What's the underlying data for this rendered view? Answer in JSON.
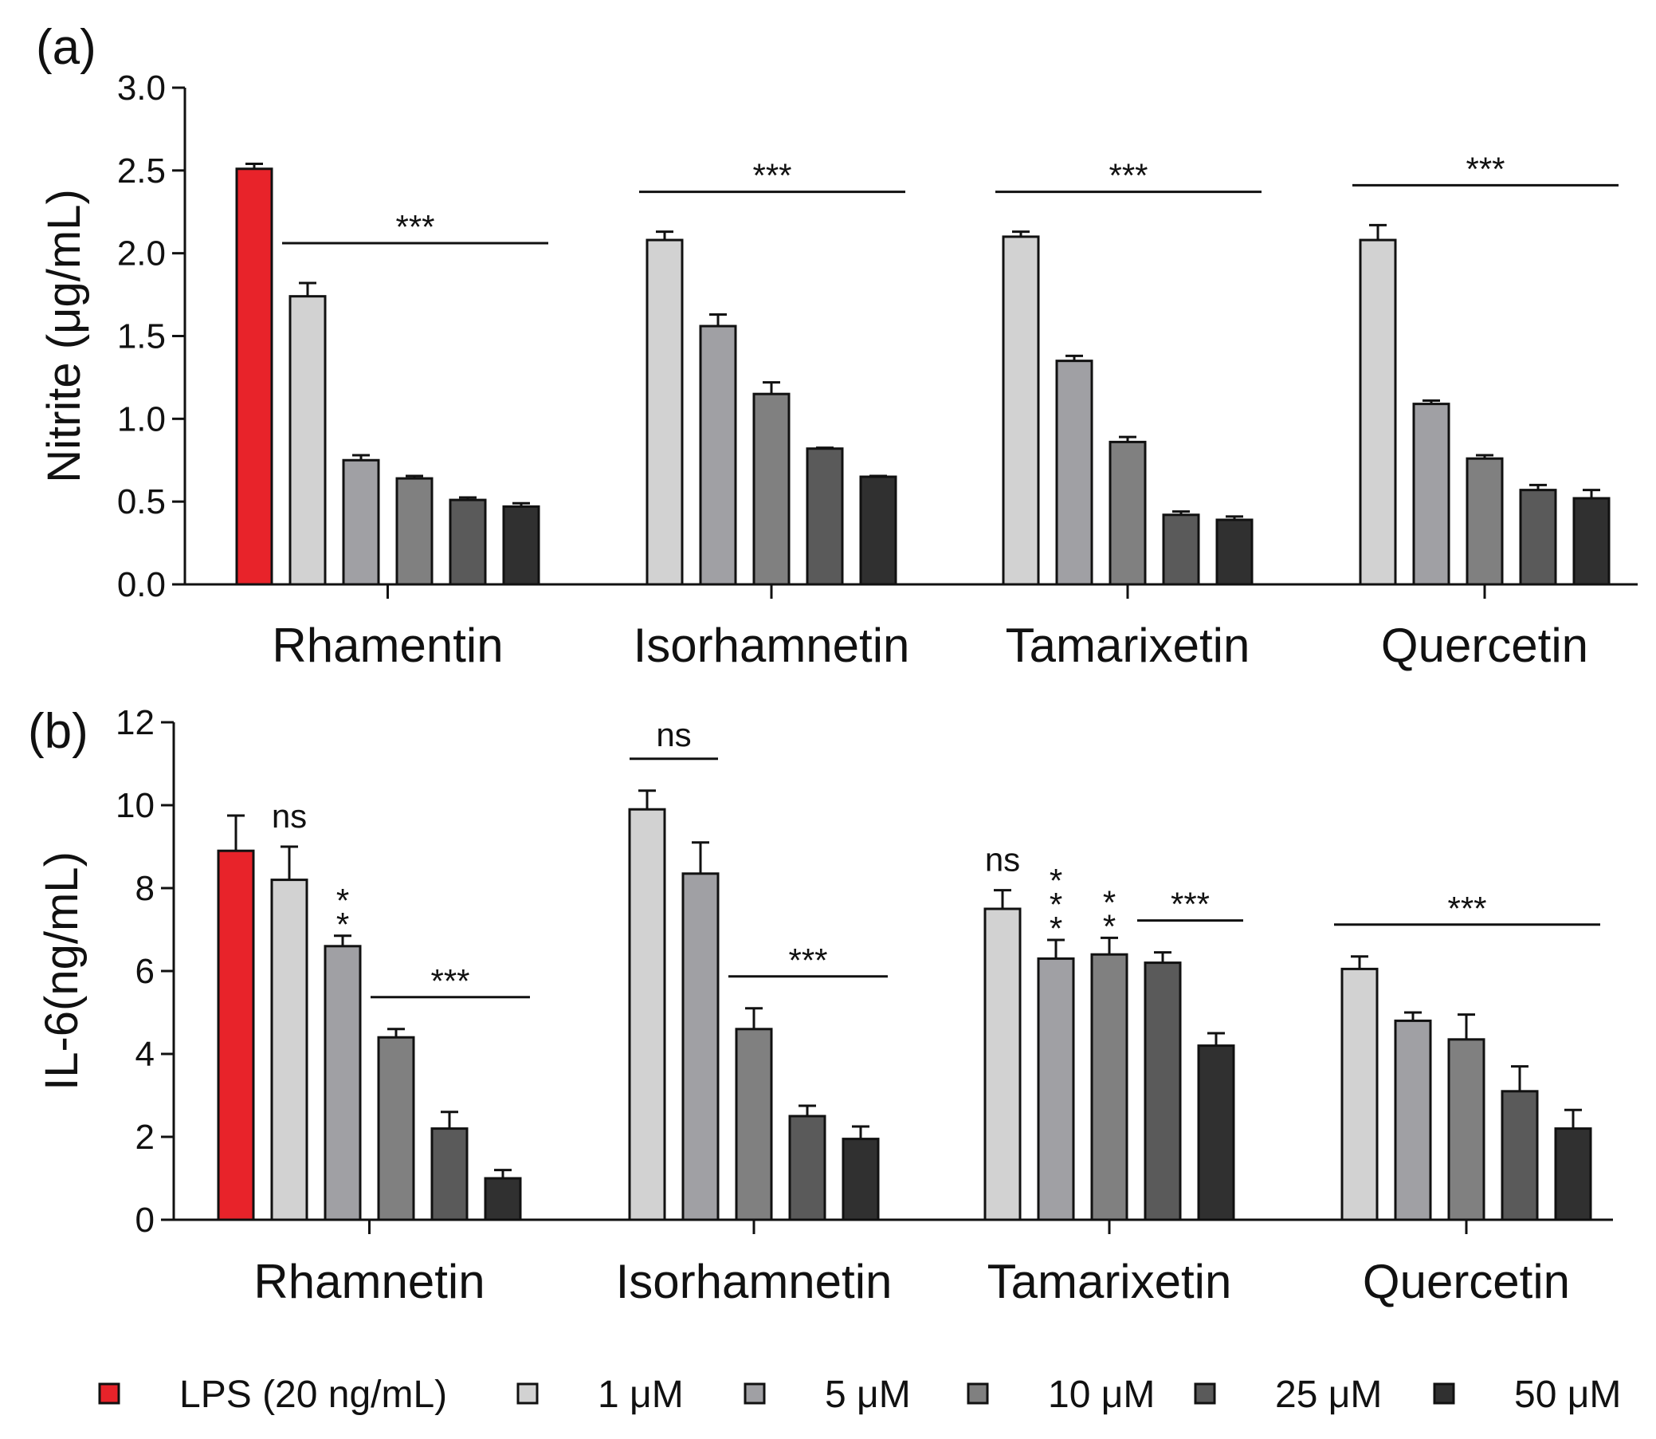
{
  "legend": [
    {
      "label": "LPS (20 ng/mL)",
      "color": "#e8232a"
    },
    {
      "label": "1 μM",
      "color": "#d2d2d2"
    },
    {
      "label": "5 μM",
      "color": "#a0a0a4"
    },
    {
      "label": "10 μM",
      "color": "#808080"
    },
    {
      "label": "25 μM",
      "color": "#5a5a5a"
    },
    {
      "label": "50 μM",
      "color": "#303030"
    }
  ],
  "chart_data": [
    {
      "type": "bar",
      "panel": "(a)",
      "ylabel": "Nitrite (μg/mL)",
      "ylim": [
        0,
        3.0
      ],
      "yticks": [
        "0.0",
        "0.5",
        "1.0",
        "1.5",
        "2.0",
        "2.5",
        "3.0"
      ],
      "categories": [
        "Rhamentin",
        "Isorhamnetin",
        "Tamarixetin",
        "Quercetin"
      ],
      "groups": [
        {
          "name": "Rhamentin",
          "bars": [
            {
              "series": "LPS (20 ng/mL)",
              "value": 2.51,
              "error": 0.03
            },
            {
              "series": "1 μM",
              "value": 1.74,
              "error": 0.08
            },
            {
              "series": "5 μM",
              "value": 0.75,
              "error": 0.03
            },
            {
              "series": "10 μM",
              "value": 0.64,
              "error": 0.015
            },
            {
              "series": "25 μM",
              "value": 0.51,
              "error": 0.015
            },
            {
              "series": "50 μM",
              "value": 0.47,
              "error": 0.02
            }
          ],
          "annotations": [
            {
              "text": "***",
              "from": 1,
              "to": 5
            }
          ]
        },
        {
          "name": "Isorhamnetin",
          "bars": [
            {
              "series": "1 μM",
              "value": 2.08,
              "error": 0.05
            },
            {
              "series": "5 μM",
              "value": 1.56,
              "error": 0.07
            },
            {
              "series": "10 μM",
              "value": 1.15,
              "error": 0.07
            },
            {
              "series": "25 μM",
              "value": 0.82,
              "error": 0.005
            },
            {
              "series": "50 μM",
              "value": 0.65,
              "error": 0.005
            }
          ],
          "annotations": [
            {
              "text": "***",
              "from": 0,
              "to": 4
            }
          ]
        },
        {
          "name": "Tamarixetin",
          "bars": [
            {
              "series": "1 μM",
              "value": 2.1,
              "error": 0.03
            },
            {
              "series": "5 μM",
              "value": 1.35,
              "error": 0.03
            },
            {
              "series": "10 μM",
              "value": 0.86,
              "error": 0.03
            },
            {
              "series": "25 μM",
              "value": 0.42,
              "error": 0.02
            },
            {
              "series": "50 μM",
              "value": 0.39,
              "error": 0.02
            }
          ],
          "annotations": [
            {
              "text": "***",
              "from": 0,
              "to": 4
            }
          ]
        },
        {
          "name": "Quercetin",
          "bars": [
            {
              "series": "1 μM",
              "value": 2.08,
              "error": 0.09
            },
            {
              "series": "5 μM",
              "value": 1.09,
              "error": 0.02
            },
            {
              "series": "10 μM",
              "value": 0.76,
              "error": 0.02
            },
            {
              "series": "25 μM",
              "value": 0.57,
              "error": 0.03
            },
            {
              "series": "50 μM",
              "value": 0.52,
              "error": 0.05
            }
          ],
          "annotations": [
            {
              "text": "***",
              "from": 0,
              "to": 4
            }
          ]
        }
      ]
    },
    {
      "type": "bar",
      "panel": "(b)",
      "ylabel": "IL-6(ng/mL)",
      "ylim": [
        0,
        12
      ],
      "yticks": [
        "0",
        "2",
        "4",
        "6",
        "8",
        "10",
        "12"
      ],
      "categories": [
        "Rhamnetin",
        "Isorhamnetin",
        "Tamarixetin",
        "Quercetin"
      ],
      "groups": [
        {
          "name": "Rhamnetin",
          "bars": [
            {
              "series": "LPS (20 ng/mL)",
              "value": 8.9,
              "error": 0.85
            },
            {
              "series": "1 μM",
              "value": 8.2,
              "error": 0.8,
              "label": "ns"
            },
            {
              "series": "5 μM",
              "value": 6.6,
              "error": 0.25,
              "label": "**"
            },
            {
              "series": "10 μM",
              "value": 4.4,
              "error": 0.2
            },
            {
              "series": "25 μM",
              "value": 2.2,
              "error": 0.4
            },
            {
              "series": "50 μM",
              "value": 1.0,
              "error": 0.2
            }
          ],
          "annotations": [
            {
              "text": "***",
              "from": 3,
              "to": 5
            }
          ]
        },
        {
          "name": "Isorhamnetin",
          "bars": [
            {
              "series": "1 μM",
              "value": 9.9,
              "error": 0.45
            },
            {
              "series": "5 μM",
              "value": 8.35,
              "error": 0.75
            },
            {
              "series": "10 μM",
              "value": 4.6,
              "error": 0.5
            },
            {
              "series": "25 μM",
              "value": 2.5,
              "error": 0.25
            },
            {
              "series": "50 μM",
              "value": 1.95,
              "error": 0.3
            }
          ],
          "annotations": [
            {
              "text": "ns",
              "from": 0,
              "to": 1
            },
            {
              "text": "***",
              "from": 2,
              "to": 4
            }
          ]
        },
        {
          "name": "Tamarixetin",
          "bars": [
            {
              "series": "1 μM",
              "value": 7.5,
              "error": 0.45,
              "label": "ns"
            },
            {
              "series": "5 μM",
              "value": 6.3,
              "error": 0.45,
              "label": "***"
            },
            {
              "series": "10 μM",
              "value": 6.4,
              "error": 0.4,
              "label": "**"
            },
            {
              "series": "25 μM",
              "value": 6.2,
              "error": 0.25
            },
            {
              "series": "50 μM",
              "value": 4.2,
              "error": 0.3
            }
          ],
          "annotations": [
            {
              "text": "***",
              "from": 3,
              "to": 4
            }
          ]
        },
        {
          "name": "Quercetin",
          "bars": [
            {
              "series": "1 μM",
              "value": 6.05,
              "error": 0.3
            },
            {
              "series": "5 μM",
              "value": 4.8,
              "error": 0.2
            },
            {
              "series": "10 μM",
              "value": 4.35,
              "error": 0.6
            },
            {
              "series": "25 μM",
              "value": 3.1,
              "error": 0.6
            },
            {
              "series": "50 μM",
              "value": 2.2,
              "error": 0.45
            }
          ],
          "annotations": [
            {
              "text": "***",
              "from": 0,
              "to": 4
            }
          ]
        }
      ]
    }
  ]
}
